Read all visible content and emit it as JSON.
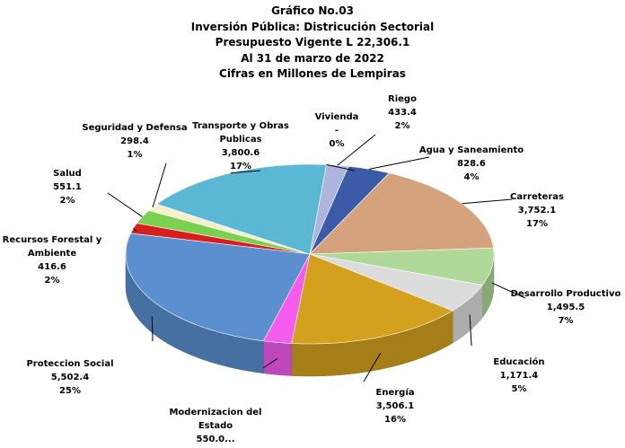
{
  "chart_data": {
    "type": "pie",
    "title": [
      "Gráfico No.03",
      "Inversión Pública: Districución Sectorial",
      "Presupuesto Vigente L 22,306.1",
      "Al 31 de marzo de 2022",
      "Cifras en Millones de Lempiras"
    ],
    "categories": [
      "Riego",
      "Agua y Saneamiento",
      "Carreteras",
      "Desarrollo Productivo",
      "Educación",
      "Energía",
      "Modernizacion del Estado",
      "Proteccion Social",
      "Recursos Forestal y Ambiente",
      "Salud",
      "Seguridad y Defensa",
      "Transporte y Obras Publicas",
      "Vivienda"
    ],
    "values": [
      433.4,
      828.6,
      3752.1,
      1495.5,
      1171.4,
      3506.1,
      550.0,
      5502.4,
      416.6,
      551.1,
      298.4,
      3800.6,
      null
    ],
    "value_labels": [
      "433.4",
      "828.6",
      "3,752.1",
      "1,495.5",
      "1,171.4",
      "3,506.1",
      "550.0...",
      "5,502.4",
      "416.6",
      "551.1",
      "298.4",
      "3,800.6",
      "-"
    ],
    "percent_labels": [
      "2%",
      "4%",
      "17%",
      "7%",
      "5%",
      "16%",
      null,
      "25%",
      "2%",
      "2%",
      "1%",
      "17%",
      "0%"
    ],
    "colors": [
      "#aeb4dc",
      "#3b5ba8",
      "#d4a27c",
      "#b0d89a",
      "#dcdcdc",
      "#d4a11e",
      "#f45cf0",
      "#5b8fd0",
      "#d81e1e",
      "#7cd050",
      "#f5f0cc",
      "#5bb8d4",
      "#8090c0"
    ]
  }
}
